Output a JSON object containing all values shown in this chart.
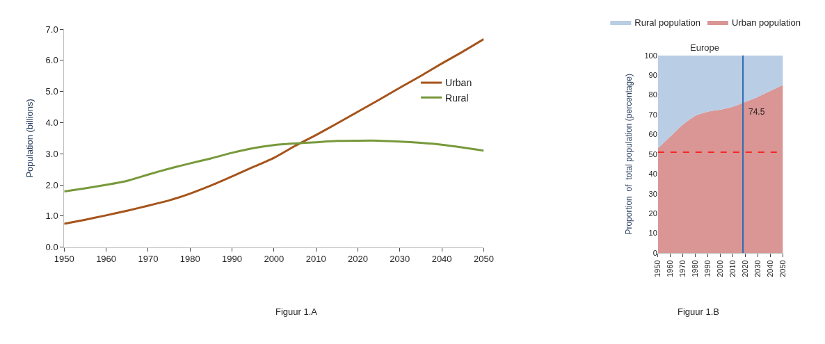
{
  "chart_data": [
    {
      "type": "line",
      "ylabel": "Population (billions)",
      "annotations": [
        "Figuur 1.A"
      ],
      "x": [
        1950,
        1955,
        1960,
        1965,
        1970,
        1975,
        1980,
        1985,
        1990,
        1995,
        2000,
        2005,
        2010,
        2015,
        2020,
        2025,
        2030,
        2035,
        2040,
        2045,
        2050
      ],
      "series": [
        {
          "name": "Urban",
          "color": "#a5541b",
          "values": [
            0.75,
            0.88,
            1.02,
            1.17,
            1.33,
            1.5,
            1.72,
            1.98,
            2.27,
            2.57,
            2.87,
            3.25,
            3.6,
            3.97,
            4.35,
            4.73,
            5.12,
            5.5,
            5.9,
            6.28,
            6.68
          ]
        },
        {
          "name": "Rural",
          "color": "#77993b",
          "values": [
            1.79,
            1.89,
            2.0,
            2.13,
            2.33,
            2.52,
            2.69,
            2.85,
            3.03,
            3.18,
            3.28,
            3.33,
            3.37,
            3.41,
            3.42,
            3.42,
            3.39,
            3.35,
            3.29,
            3.2,
            3.1
          ]
        }
      ],
      "xlim": [
        1950,
        2050
      ],
      "xticks": [
        1950,
        1960,
        1970,
        1980,
        1990,
        2000,
        2010,
        2020,
        2030,
        2040,
        2050
      ],
      "ylim": [
        0,
        7
      ],
      "yticks": [
        {
          "value": 0,
          "label": "0.0"
        },
        {
          "value": 1,
          "label": "1.0"
        },
        {
          "value": 2,
          "label": "2.0"
        },
        {
          "value": 3,
          "label": "3.0"
        },
        {
          "value": 4,
          "label": "4.0"
        },
        {
          "value": 5,
          "label": "5.0"
        },
        {
          "value": 6,
          "label": "6.0"
        },
        {
          "value": 7,
          "label": "7.0"
        }
      ],
      "legend": "right"
    },
    {
      "type": "area",
      "stacked": true,
      "title": "Europe",
      "ylabel": "Proportion  of  total population (percentage)",
      "annotations": [
        {
          "text": "74.5",
          "x": 2018,
          "y": 74.5
        },
        "Figuur 1.B"
      ],
      "x": [
        1950,
        1960,
        1970,
        1980,
        1990,
        2000,
        2010,
        2020,
        2030,
        2040,
        2050
      ],
      "series": [
        {
          "name": "Urban population",
          "color": "#d99694",
          "values": [
            53,
            59,
            65,
            69.5,
            71.5,
            72.5,
            74,
            76.5,
            79,
            82,
            85
          ]
        },
        {
          "name": "Rural population",
          "color": "#b9cde5",
          "values": [
            47,
            41,
            35,
            30.5,
            28.5,
            27.5,
            26,
            23.5,
            21,
            18,
            15
          ]
        }
      ],
      "xlim": [
        1950,
        2050
      ],
      "xticks": [
        1950,
        1960,
        1970,
        1980,
        1990,
        2000,
        2010,
        2020,
        2030,
        2040,
        2050
      ],
      "ylim": [
        0,
        100
      ],
      "yticks": [
        0,
        10,
        20,
        30,
        40,
        50,
        60,
        70,
        80,
        90,
        100
      ],
      "ref_lines": [
        {
          "axis": "y",
          "value": 51,
          "color": "#ff0000",
          "line_style": "dashed"
        },
        {
          "axis": "x",
          "value": 2018,
          "color": "#2e6bb8",
          "line_style": "solid"
        }
      ],
      "legend": "top"
    }
  ]
}
